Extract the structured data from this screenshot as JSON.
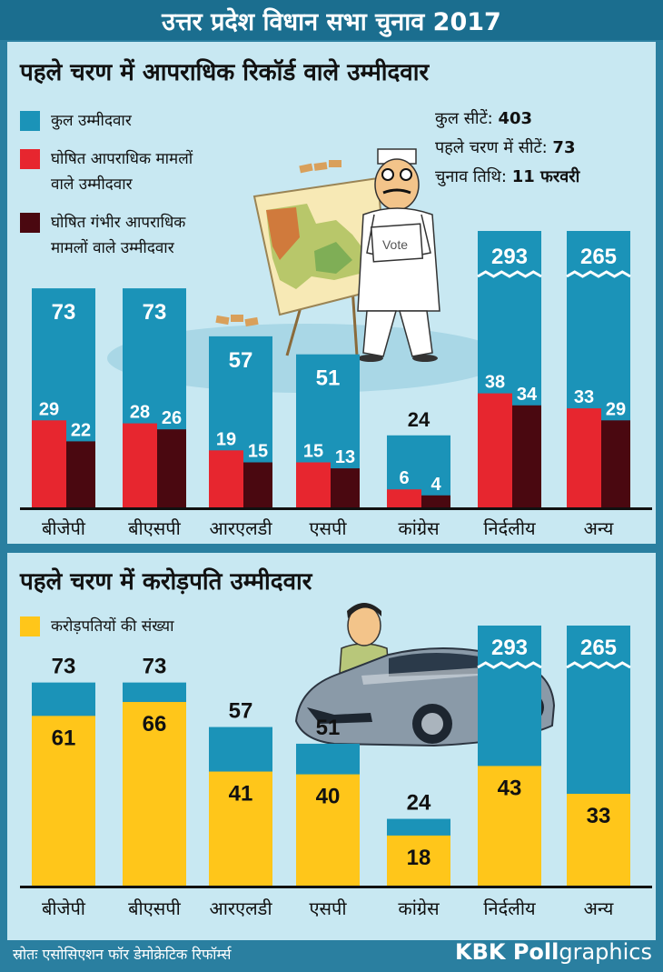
{
  "header": {
    "title": "उत्तर प्रदेश विधान सभा चुनाव 2017"
  },
  "criminal_panel": {
    "title": "पहले चरण में आपराधिक रिकॉर्ड वाले उम्मीदवार",
    "legend": [
      {
        "label": "कुल उम्मीदवार",
        "color": "#1b93b8"
      },
      {
        "label_line1": "घोषित आपराधिक मामलों",
        "label_line2": "वाले उम्मीदवार",
        "color": "#e7262f"
      },
      {
        "label_line1": "घोषित गंभीर आपराधिक",
        "label_line2": "मामलों वाले उम्मीदवार",
        "color": "#4a0810"
      }
    ],
    "info": {
      "total_seats_label": "कुल सीटें:",
      "total_seats_value": "403",
      "phase_seats_label": "पहले चरण में सीटें:",
      "phase_seats_value": "73",
      "date_label": "चुनाव तिथि:",
      "date_value": "11 फरवरी"
    },
    "illustration": {
      "ballot_text": "Vote"
    }
  },
  "millionaire_panel": {
    "title": "पहले चरण में करोड़पति उम्मीदवार",
    "legend": [
      {
        "label": "करोड़पतियों की संख्या",
        "color": "#ffc61a"
      }
    ]
  },
  "footer": {
    "source": "स्रोतः एसोसिएशन फॉर डेमोक्रेटिक रिफॉर्म्स",
    "brand_bold": "KBK Poll",
    "brand_rest": "graphics"
  },
  "colors": {
    "total": "#1b93b8",
    "criminal": "#e7262f",
    "serious": "#4a0810",
    "crorepati": "#ffc61a"
  },
  "chart_data": [
    {
      "type": "bar",
      "title": "पहले चरण में आपराधिक रिकॉर्ड वाले उम्मीदवार",
      "categories": [
        "बीजेपी",
        "बीएसपी",
        "आरएलडी",
        "एसपी",
        "कांग्रेस",
        "निर्दलीय",
        "अन्य"
      ],
      "series": [
        {
          "name": "कुल उम्मीदवार",
          "values": [
            73,
            73,
            57,
            51,
            24,
            293,
            265
          ]
        },
        {
          "name": "घोषित आपराधिक मामलों वाले उम्मीदवार",
          "values": [
            29,
            28,
            19,
            15,
            6,
            38,
            33
          ]
        },
        {
          "name": "घोषित गंभीर आपराधिक मामलों वाले उम्मीदवार",
          "values": [
            22,
            26,
            15,
            13,
            4,
            34,
            29
          ]
        }
      ],
      "axis_break_categories": [
        "निर्दलीय",
        "अन्य"
      ],
      "grid": false
    },
    {
      "type": "bar",
      "title": "पहले चरण में करोड़पति उम्मीदवार",
      "categories": [
        "बीजेपी",
        "बीएसपी",
        "आरएलडी",
        "एसपी",
        "कांग्रेस",
        "निर्दलीय",
        "अन्य"
      ],
      "series": [
        {
          "name": "कुल उम्मीदवार",
          "values": [
            73,
            73,
            57,
            51,
            24,
            293,
            265
          ]
        },
        {
          "name": "करोड़पतियों की संख्या",
          "values": [
            61,
            66,
            41,
            40,
            18,
            43,
            33
          ]
        }
      ],
      "axis_break_categories": [
        "निर्दलीय",
        "अन्य"
      ],
      "grid": false
    }
  ]
}
